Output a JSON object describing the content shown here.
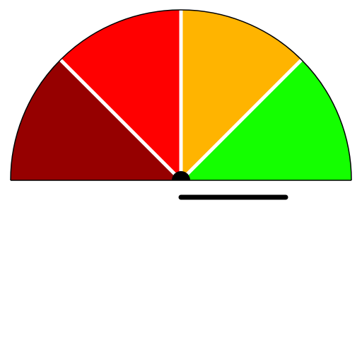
{
  "gauge": {
    "segments": [
      {
        "name": "dark-red",
        "color": "#960000"
      },
      {
        "name": "red",
        "color": "#ff0000"
      },
      {
        "name": "amber",
        "color": "#ffb400"
      },
      {
        "name": "green",
        "color": "#14ff00"
      }
    ],
    "divider_color": "#ffffff",
    "outline_color": "#000000",
    "hub_color": "#000000",
    "needle_color": "#000000",
    "needle_value": 1.0
  }
}
